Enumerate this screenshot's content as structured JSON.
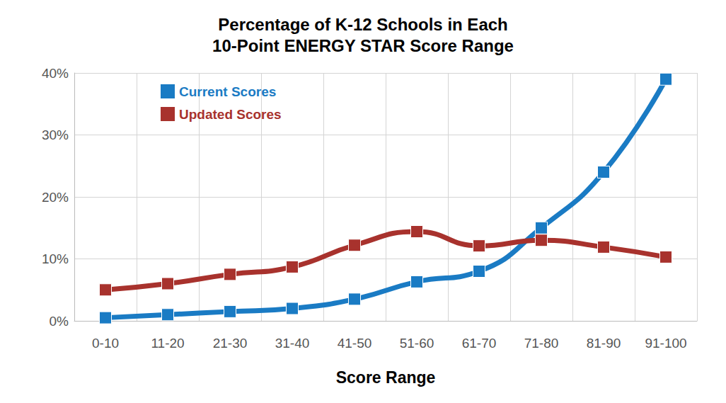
{
  "chart_data": {
    "type": "line",
    "title": "Percentage of K-12 Schools in Each\n10-Point ENERGY STAR Score Range",
    "x_label": "Score Range",
    "categories": [
      "0-10",
      "11-20",
      "21-30",
      "31-40",
      "41-50",
      "51-60",
      "61-70",
      "71-80",
      "81-90",
      "91-100"
    ],
    "series": [
      {
        "name": "Current Scores",
        "color": "#1a7bc4",
        "marker": "square",
        "line_style": "solid",
        "values": [
          0.5,
          1,
          1.5,
          2,
          3.5,
          6.3,
          8,
          15,
          24,
          39
        ]
      },
      {
        "name": "Updated Scores",
        "color": "#a8322d",
        "marker": "square",
        "line_style": "solid",
        "values": [
          5,
          6,
          7.5,
          8.7,
          12.2,
          14.4,
          12.1,
          13,
          11.9,
          10.3
        ]
      }
    ],
    "ylim": [
      0,
      40
    ],
    "yticks": [
      {
        "value": 0,
        "label": "0%"
      },
      {
        "value": 10,
        "label": "10%"
      },
      {
        "value": 20,
        "label": "20%"
      },
      {
        "value": 30,
        "label": "30%"
      },
      {
        "value": 40,
        "label": "40%"
      }
    ],
    "grid": true,
    "legend": "upper left"
  }
}
